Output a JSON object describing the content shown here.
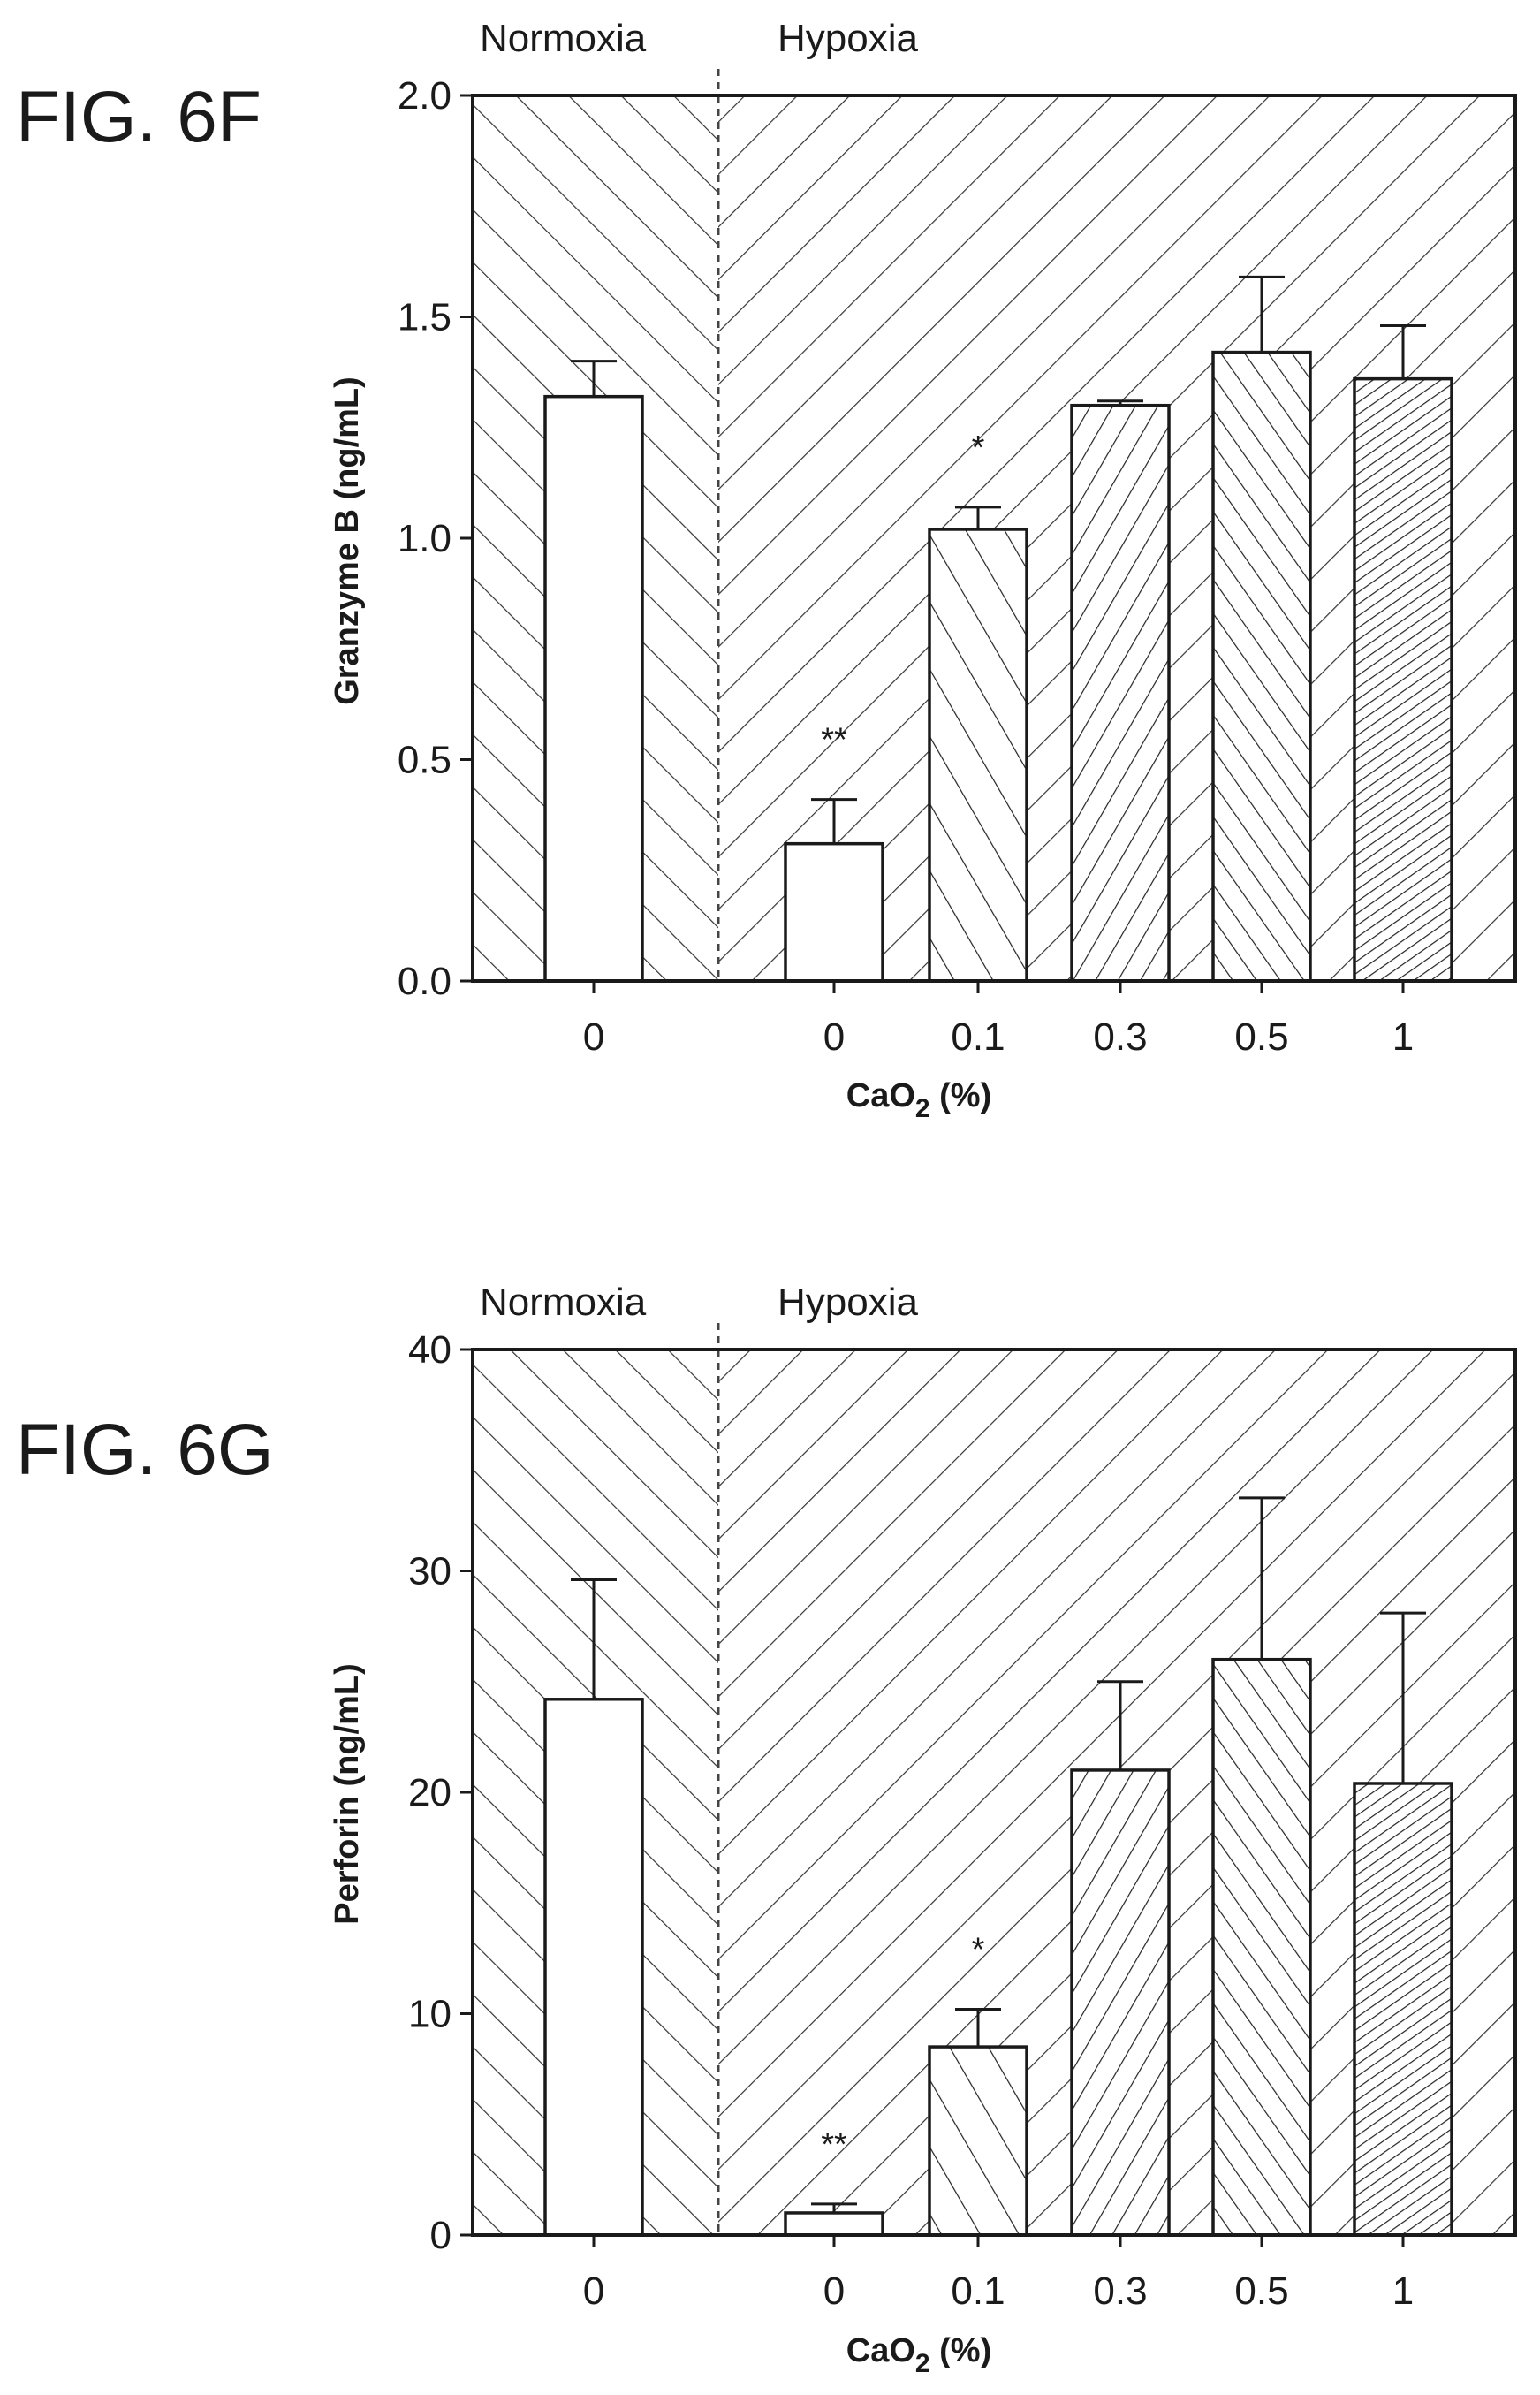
{
  "charts": [
    {
      "fig_label": "FIG. 6F",
      "ylabel": "Granzyme B (ng/mL)",
      "xlabel_main": "CaO",
      "xlabel_sub": "2",
      "xlabel_tail": " (%)",
      "cond_left": "Normoxia",
      "cond_right": "Hypoxia",
      "ytick_labels": [
        "0.0",
        "0.5",
        "1.0",
        "1.5",
        "2.0"
      ]
    },
    {
      "fig_label": "FIG. 6G",
      "ylabel": "Perforin (ng/mL)",
      "xlabel_main": "CaO",
      "xlabel_sub": "2",
      "xlabel_tail": " (%)",
      "cond_left": "Normoxia",
      "cond_right": "Hypoxia",
      "ytick_labels": [
        "0",
        "10",
        "20",
        "30",
        "40"
      ]
    }
  ],
  "chart_data": [
    {
      "type": "bar",
      "title": "",
      "xlabel": "CaO2 (%)",
      "ylabel": "Granzyme B (ng/mL)",
      "ylim": [
        0,
        2.0
      ],
      "yticks": [
        0,
        0.5,
        1.0,
        1.5,
        2.0
      ],
      "categories": [
        "0",
        "0",
        "0.1",
        "0.3",
        "0.5",
        "1"
      ],
      "groups": [
        "Normoxia",
        "Hypoxia",
        "Hypoxia",
        "Hypoxia",
        "Hypoxia",
        "Hypoxia"
      ],
      "values": [
        1.32,
        0.31,
        1.02,
        1.3,
        1.42,
        1.36
      ],
      "errors": [
        0.08,
        0.1,
        0.05,
        0.01,
        0.17,
        0.12
      ],
      "significance": [
        "",
        "**",
        "*",
        "",
        "",
        ""
      ],
      "bar_patterns": [
        "none",
        "none",
        "diag-back-wide",
        "diag-fwd-medium",
        "diag-back-medium",
        "diag-fwd-dense"
      ],
      "background": "hatched: Normoxia region diagonal down-right, Hypoxia region diagonal up-right",
      "grid": false
    },
    {
      "type": "bar",
      "title": "",
      "xlabel": "CaO2 (%)",
      "ylabel": "Perforin (ng/mL)",
      "ylim": [
        0,
        40
      ],
      "yticks": [
        0,
        10,
        20,
        30,
        40
      ],
      "categories": [
        "0",
        "0",
        "0.1",
        "0.3",
        "0.5",
        "1"
      ],
      "groups": [
        "Normoxia",
        "Hypoxia",
        "Hypoxia",
        "Hypoxia",
        "Hypoxia",
        "Hypoxia"
      ],
      "values": [
        24.2,
        1.0,
        8.5,
        21.0,
        26.0,
        20.4
      ],
      "errors": [
        5.4,
        0.4,
        1.7,
        4.0,
        7.3,
        7.7
      ],
      "significance": [
        "",
        "**",
        "*",
        "",
        "",
        ""
      ],
      "bar_patterns": [
        "none",
        "none",
        "diag-back-wide",
        "diag-fwd-medium",
        "diag-back-medium",
        "diag-fwd-dense"
      ],
      "background": "hatched: Normoxia region diagonal down-right, Hypoxia region diagonal up-right",
      "grid": false
    }
  ],
  "colors": {
    "ink": "#1a1a1a",
    "hatch": "#333333",
    "bar_fill": "#ffffff",
    "background": "#ffffff"
  }
}
